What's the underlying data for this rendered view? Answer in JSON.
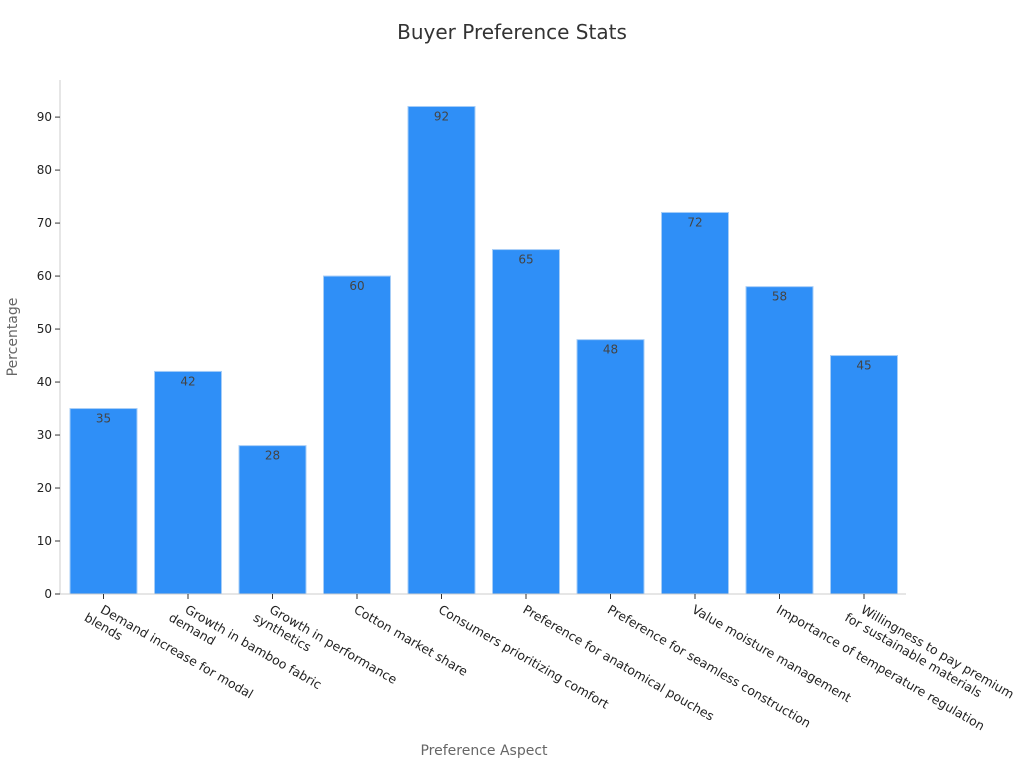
{
  "chart_data": {
    "type": "bar",
    "title": "Buyer Preference Stats",
    "xlabel": "Preference Aspect",
    "ylabel": "Percentage",
    "categories": [
      "Demand increase for modal\nblends",
      "Growth in bamboo fabric\ndemand",
      "Growth in performance\nsynthetics",
      "Cotton market share",
      "Consumers prioritizing comfort",
      "Preference for anatomical pouches",
      "Preference for seamless construction",
      "Value moisture management",
      "Importance of temperature regulation",
      "Willingness to pay premium\nfor sustainable materials"
    ],
    "values": [
      35,
      42,
      28,
      60,
      92,
      65,
      48,
      72,
      58,
      45
    ],
    "ylim": [
      0,
      97
    ],
    "yticks": [
      0,
      10,
      20,
      30,
      40,
      50,
      60,
      70,
      80,
      90
    ],
    "bar_color": "#2f8ff7",
    "bar_edge_color": "#a6cdf7",
    "grid": false,
    "legend": "none"
  }
}
